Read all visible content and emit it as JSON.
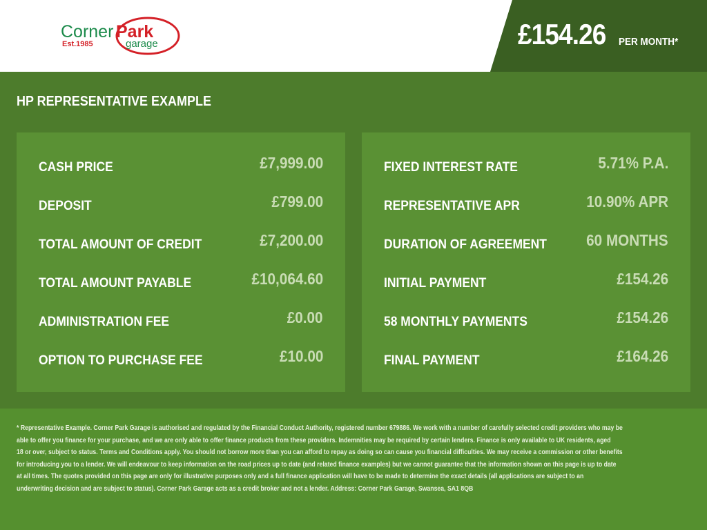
{
  "header": {
    "logo": {
      "word1": "Corner",
      "word2": "Park",
      "sub": "garage",
      "est": "Est.1985"
    },
    "price": "£154.26",
    "per_month": "PER MONTH*"
  },
  "main": {
    "title": "HP REPRESENTATIVE EXAMPLE",
    "left": [
      {
        "label": "CASH PRICE",
        "value": "£7,999.00"
      },
      {
        "label": "DEPOSIT",
        "value": "£799.00"
      },
      {
        "label": "TOTAL AMOUNT OF CREDIT",
        "value": "£7,200.00"
      },
      {
        "label": "TOTAL AMOUNT PAYABLE",
        "value": "£10,064.60"
      },
      {
        "label": "ADMINISTRATION FEE",
        "value": "£0.00"
      },
      {
        "label": "OPTION TO PURCHASE FEE",
        "value": "£10.00"
      }
    ],
    "right": [
      {
        "label": "FIXED INTEREST RATE",
        "value": "5.71% P.A."
      },
      {
        "label": "REPRESENTATIVE APR",
        "value": "10.90% APR"
      },
      {
        "label": "DURATION OF AGREEMENT",
        "value": "60 MONTHS"
      },
      {
        "label": "INITIAL PAYMENT",
        "value": "£154.26"
      },
      {
        "label": "58 MONTHLY PAYMENTS",
        "value": "£154.26"
      },
      {
        "label": "FINAL PAYMENT",
        "value": "£164.26"
      }
    ]
  },
  "footer": {
    "lines": [
      "* Representative Example. Corner Park Garage is authorised and regulated by the Financial Conduct Authority, registered number 679886. We work with a number of carefully selected credit providers who may be",
      "able to offer you finance for your purchase, and we are only able to offer finance products from these providers. Indemnities may be required by certain lenders. Finance is only available to UK residents, aged",
      "18 or over, subject to status. Terms and Conditions apply. You should not borrow more than you can afford to repay as doing so can cause you financial difficulties. We may receive a commission or other benefits",
      "for introducing you to a lender. We will endeavour to keep information on the road prices up to date (and related finance examples) but we cannot guarantee that the information shown on this page is up to date",
      "at all times. The quotes provided on this page are only for illustrative purposes only and a full finance application will have to be made to determine the exact details (all applications are subject to an",
      "underwriting decision and are subject to status). Corner Park Garage acts as a credit broker and not a lender. Address: Corner Park Garage, Swansea, SA1 8QB"
    ]
  }
}
